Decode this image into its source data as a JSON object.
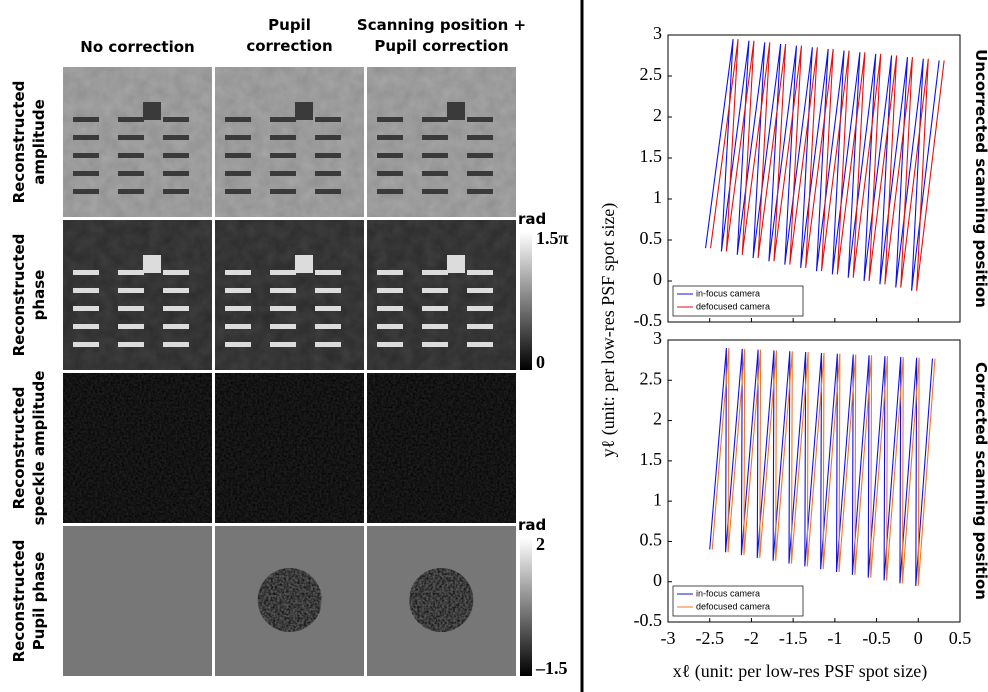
{
  "left_panel": {
    "columns": [
      "No correction",
      "Pupil correction",
      "Scanning position + Pupil correction"
    ],
    "rows": [
      "Reconstructed amplitude",
      "Reconstructed phase",
      "Reconstructed speckle amplitude",
      "Reconstructed Pupil phase"
    ],
    "colorbars": [
      {
        "unit": "rad",
        "max": "1.5π",
        "min": "0"
      },
      {
        "unit": "rad",
        "max": "2",
        "min": "–1.5"
      }
    ]
  },
  "right_panel": {
    "x_label": "xℓ (unit: per low-res PSF spot size)",
    "y_label": "yℓ (unit: per low-res PSF spot size)"
  },
  "chart_data": [
    {
      "type": "line",
      "title": "Uncorrected scanning position",
      "legend": "lower left",
      "xlim": [
        -3,
        0.5
      ],
      "ylim": [
        -0.5,
        3
      ],
      "xticks": [
        -3,
        -2.5,
        -2,
        -1.5,
        -1,
        -0.5,
        0,
        0.5
      ],
      "yticks": [
        -0.5,
        0,
        0.5,
        1,
        1.5,
        2,
        2.5,
        3
      ],
      "series": [
        {
          "name": "in-focus camera",
          "color": "#1010e0",
          "x": [
            -2.55,
            -2.22,
            -2.36,
            -2.03,
            -2.17,
            -1.84,
            -1.98,
            -1.65,
            -1.79,
            -1.46,
            -1.6,
            -1.27,
            -1.41,
            -1.08,
            -1.22,
            -0.89,
            -1.03,
            -0.7,
            -0.84,
            -0.51,
            -0.65,
            -0.32,
            -0.46,
            -0.13,
            -0.27,
            0.06,
            -0.08,
            0.25
          ],
          "values": [
            0.4,
            2.95,
            0.36,
            2.93,
            0.32,
            2.91,
            0.28,
            2.89,
            0.24,
            2.87,
            0.2,
            2.85,
            0.16,
            2.83,
            0.12,
            2.81,
            0.08,
            2.79,
            0.04,
            2.77,
            0,
            2.75,
            -0.04,
            2.73,
            -0.08,
            2.71,
            -0.12,
            2.69
          ]
        },
        {
          "name": "defocused camera",
          "color": "#e01010",
          "x": [
            -2.49,
            -2.16,
            -2.3,
            -1.97,
            -2.11,
            -1.78,
            -1.92,
            -1.59,
            -1.73,
            -1.4,
            -1.54,
            -1.21,
            -1.35,
            -1.02,
            -1.16,
            -0.83,
            -0.97,
            -0.64,
            -0.78,
            -0.45,
            -0.59,
            -0.26,
            -0.4,
            -0.07,
            -0.21,
            0.12,
            -0.02,
            0.31
          ],
          "values": [
            0.4,
            2.95,
            0.36,
            2.93,
            0.32,
            2.91,
            0.28,
            2.89,
            0.24,
            2.87,
            0.2,
            2.85,
            0.16,
            2.83,
            0.12,
            2.81,
            0.08,
            2.79,
            0.04,
            2.77,
            0,
            2.75,
            -0.04,
            2.73,
            -0.08,
            2.71,
            -0.12,
            2.69
          ]
        }
      ]
    },
    {
      "type": "line",
      "title": "Corrected scanning position",
      "legend": "lower left",
      "xlim": [
        -3,
        0.5
      ],
      "ylim": [
        -0.5,
        3
      ],
      "xticks": [
        -3,
        -2.5,
        -2,
        -1.5,
        -1,
        -0.5,
        0,
        0.5
      ],
      "yticks": [
        -0.5,
        0,
        0.5,
        1,
        1.5,
        2,
        2.5,
        3
      ],
      "series": [
        {
          "name": "in-focus camera",
          "color": "#1010e0",
          "x": [
            -2.5,
            -2.3,
            -2.31,
            -2.11,
            -2.12,
            -1.92,
            -1.93,
            -1.73,
            -1.74,
            -1.54,
            -1.55,
            -1.35,
            -1.36,
            -1.16,
            -1.17,
            -0.97,
            -0.98,
            -0.78,
            -0.79,
            -0.59,
            -0.6,
            -0.4,
            -0.41,
            -0.21,
            -0.22,
            -0.02,
            -0.03,
            0.17
          ],
          "values": [
            0.4,
            2.9,
            0.365,
            2.89,
            0.33,
            2.88,
            0.295,
            2.87,
            0.26,
            2.86,
            0.225,
            2.85,
            0.19,
            2.84,
            0.155,
            2.83,
            0.12,
            2.82,
            0.085,
            2.81,
            0.05,
            2.8,
            0.015,
            2.79,
            -0.02,
            2.78,
            -0.055,
            2.77
          ]
        },
        {
          "name": "defocused camera",
          "color": "#f07820",
          "x": [
            -2.47,
            -2.27,
            -2.28,
            -2.08,
            -2.09,
            -1.89,
            -1.9,
            -1.7,
            -1.71,
            -1.51,
            -1.52,
            -1.32,
            -1.33,
            -1.13,
            -1.14,
            -0.94,
            -0.95,
            -0.75,
            -0.76,
            -0.56,
            -0.57,
            -0.37,
            -0.38,
            -0.18,
            -0.19,
            0.01,
            0,
            0.2
          ],
          "values": [
            0.4,
            2.9,
            0.365,
            2.89,
            0.33,
            2.88,
            0.295,
            2.87,
            0.26,
            2.86,
            0.225,
            2.85,
            0.19,
            2.84,
            0.155,
            2.83,
            0.12,
            2.82,
            0.085,
            2.81,
            0.05,
            2.8,
            0.015,
            2.79,
            -0.02,
            2.78,
            -0.055,
            2.77
          ]
        }
      ]
    }
  ]
}
